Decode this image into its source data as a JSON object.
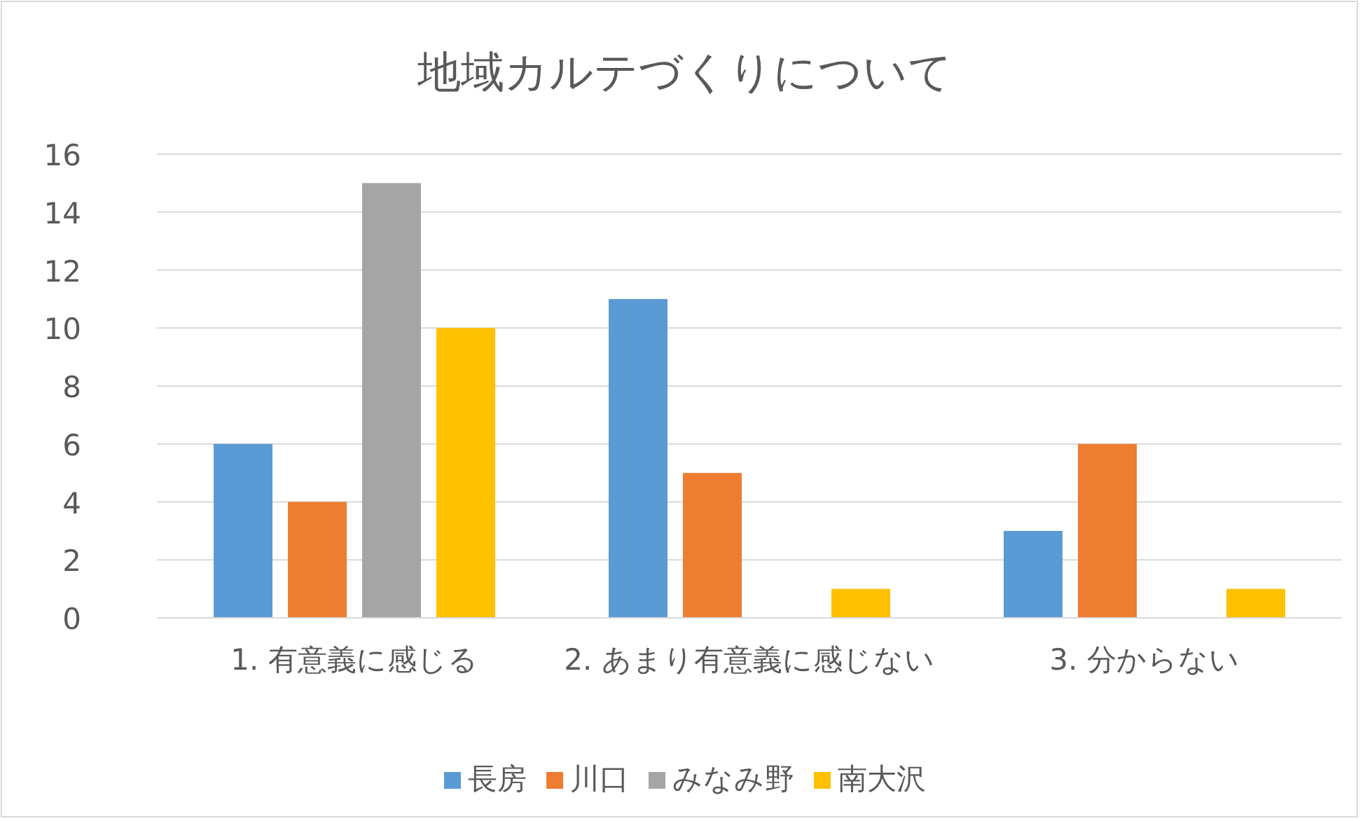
{
  "chart_data": {
    "type": "bar",
    "title": "地域カルテづくりについて",
    "categories": [
      "1.  有意義に感じる",
      "2.  あまり有意義に感じない",
      "3.  分からない"
    ],
    "series": [
      {
        "name": "長房",
        "color": "#5b9bd5",
        "values": [
          6,
          11,
          3
        ]
      },
      {
        "name": "川口",
        "color": "#ed7d31",
        "values": [
          4,
          5,
          6
        ]
      },
      {
        "name": "みなみ野",
        "color": "#a5a5a5",
        "values": [
          15,
          0,
          0
        ]
      },
      {
        "name": "南大沢",
        "color": "#ffc000",
        "values": [
          10,
          1,
          1
        ]
      }
    ],
    "ylim": [
      0,
      16
    ],
    "yticks": [
      0,
      2,
      4,
      6,
      8,
      10,
      12,
      14,
      16
    ],
    "grid": "y",
    "legend": "bottom"
  }
}
